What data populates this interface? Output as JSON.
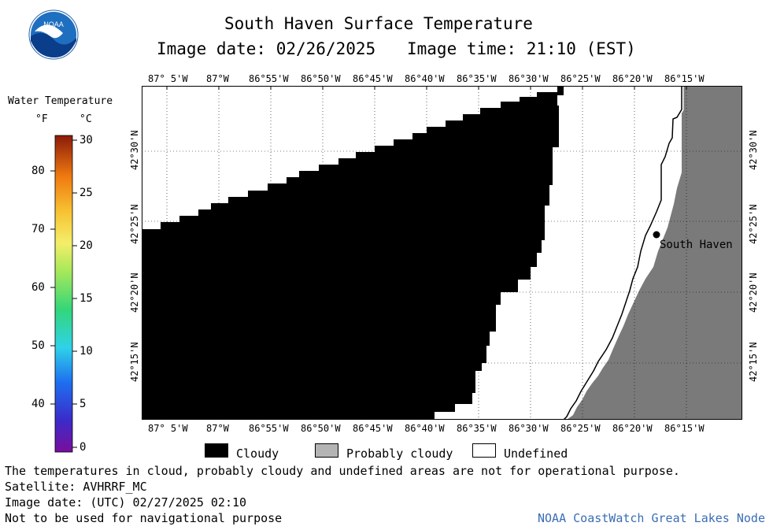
{
  "header": {
    "title": "South Haven Surface Temperature",
    "image_date": "Image date: 02/26/2025",
    "image_time": "Image time: 21:10 (EST)"
  },
  "colorbar": {
    "title": "Water Temperature",
    "unit_f": "°F",
    "unit_c": "°C",
    "f_ticks": [
      "80",
      "70",
      "60",
      "50",
      "40"
    ],
    "c_ticks": [
      "30",
      "25",
      "20",
      "15",
      "10",
      "5",
      "0"
    ],
    "range_c": [
      0,
      30
    ]
  },
  "map": {
    "lon_labels": [
      "87° 5'W",
      "87°W",
      "86°55'W",
      "86°50'W",
      "86°45'W",
      "86°40'W",
      "86°35'W",
      "86°30'W",
      "86°25'W",
      "86°20'W",
      "86°15'W"
    ],
    "lat_labels": [
      "42°30'N",
      "42°25'N",
      "42°20'N",
      "42°15'N"
    ],
    "place_label": "South Haven",
    "colors": {
      "cloud": "#000000",
      "land": "#7a7a7a",
      "undefined": "#ffffff"
    }
  },
  "legend": {
    "cloudy": "Cloudy",
    "probably_cloudy": "Probably cloudy",
    "undefined": "Undefined",
    "colors": {
      "cloudy": "#000000",
      "probably_cloudy": "#b4b4b4",
      "undefined": "#ffffff"
    }
  },
  "footer": {
    "note": "The temperatures in cloud, probably cloudy and undefined areas are not for operational purpose.",
    "satellite": "Satellite: AVHRRF_MC",
    "utc_date": "Image date: (UTC) 02/27/2025  02:10",
    "nav_warning": "Not to be used for navigational purpose",
    "credit": "NOAA CoastWatch Great Lakes Node",
    "credit_color": "#3a6db5"
  },
  "logo": {
    "text": "NOAA"
  }
}
